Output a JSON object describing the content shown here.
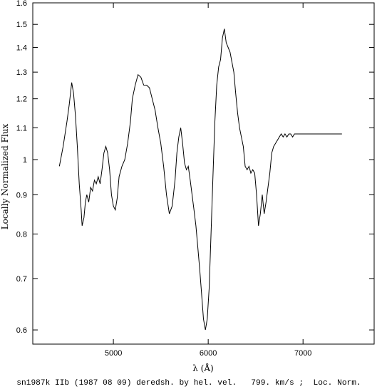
{
  "chart_data": {
    "type": "line",
    "xlabel": "λ (Å)",
    "ylabel": "Locally Normalized Flux",
    "caption": "sn1987k IIb (1987 08 09) deredsh. by hel. vel.   799. km/s ;  Loc. Norm.",
    "xlim": [
      4150,
      7750
    ],
    "ylim": [
      0.575,
      1.6
    ],
    "y_scale": "log",
    "x_ticks": [
      5000,
      6000,
      7000
    ],
    "x_tick_labels": [
      "5000",
      "6000",
      "7000"
    ],
    "y_ticks": [
      0.6,
      0.7,
      0.8,
      0.9,
      1.0,
      1.1,
      1.2,
      1.3,
      1.4,
      1.5,
      1.6
    ],
    "y_tick_labels": [
      "0.6",
      "0.7",
      "0.8",
      "0.9",
      "1",
      "1.1",
      "1.2",
      "1.3",
      "1.4",
      "1.5",
      "1.6"
    ],
    "grid": false,
    "series": [
      {
        "color": "#000000",
        "x": [
          4430,
          4470,
          4510,
          4535,
          4560,
          4580,
          4600,
          4620,
          4640,
          4660,
          4670,
          4690,
          4705,
          4720,
          4740,
          4760,
          4780,
          4800,
          4820,
          4840,
          4860,
          4880,
          4900,
          4920,
          4940,
          4960,
          4980,
          5000,
          5020,
          5040,
          5060,
          5090,
          5120,
          5150,
          5180,
          5200,
          5230,
          5260,
          5290,
          5320,
          5350,
          5380,
          5410,
          5440,
          5470,
          5500,
          5530,
          5560,
          5590,
          5620,
          5650,
          5670,
          5690,
          5710,
          5730,
          5750,
          5770,
          5790,
          5810,
          5830,
          5850,
          5870,
          5890,
          5910,
          5930,
          5950,
          5970,
          5990,
          6010,
          6030,
          6050,
          6070,
          6090,
          6110,
          6130,
          6150,
          6170,
          6190,
          6210,
          6230,
          6250,
          6270,
          6290,
          6310,
          6330,
          6350,
          6370,
          6390,
          6410,
          6430,
          6450,
          6470,
          6490,
          6510,
          6530,
          6550,
          6570,
          6590,
          6610,
          6630,
          6650,
          6670,
          6690,
          6710,
          6730,
          6750,
          6770,
          6790,
          6810,
          6830,
          6850,
          6870,
          6890,
          6910,
          6930,
          6950,
          6970,
          6990,
          7010,
          7030,
          7050,
          7070,
          7090,
          7110,
          7130,
          7150,
          7170,
          7190,
          7210,
          7230,
          7250,
          7270,
          7290,
          7310,
          7330,
          7350,
          7380,
          7410
        ],
        "y": [
          0.98,
          1.04,
          1.12,
          1.18,
          1.26,
          1.22,
          1.14,
          1.04,
          0.93,
          0.86,
          0.82,
          0.84,
          0.88,
          0.9,
          0.88,
          0.92,
          0.91,
          0.94,
          0.93,
          0.95,
          0.93,
          0.97,
          1.02,
          1.04,
          1.02,
          0.97,
          0.9,
          0.87,
          0.86,
          0.89,
          0.95,
          0.98,
          1.0,
          1.05,
          1.12,
          1.2,
          1.25,
          1.29,
          1.28,
          1.25,
          1.25,
          1.24,
          1.2,
          1.16,
          1.1,
          1.05,
          0.98,
          0.9,
          0.85,
          0.87,
          0.94,
          1.02,
          1.07,
          1.1,
          1.05,
          0.99,
          0.97,
          0.98,
          0.94,
          0.9,
          0.86,
          0.82,
          0.77,
          0.72,
          0.67,
          0.62,
          0.6,
          0.62,
          0.68,
          0.8,
          0.95,
          1.12,
          1.25,
          1.32,
          1.35,
          1.44,
          1.48,
          1.42,
          1.4,
          1.38,
          1.34,
          1.3,
          1.22,
          1.15,
          1.1,
          1.07,
          1.04,
          0.98,
          0.97,
          0.98,
          0.96,
          0.97,
          0.96,
          0.9,
          0.82,
          0.85,
          0.9,
          0.85,
          0.88,
          0.92,
          0.96,
          1.02,
          1.04,
          1.05,
          1.06,
          1.07,
          1.08,
          1.07,
          1.08,
          1.07,
          1.08,
          1.08,
          1.07,
          1.08,
          1.08,
          1.08,
          1.08,
          1.08,
          1.08,
          1.08,
          1.08,
          1.08,
          1.08,
          1.08,
          1.08,
          1.08,
          1.08,
          1.08,
          1.08,
          1.08,
          1.08,
          1.08,
          1.08,
          1.08,
          1.08,
          1.08,
          1.08,
          1.08
        ]
      }
    ]
  }
}
